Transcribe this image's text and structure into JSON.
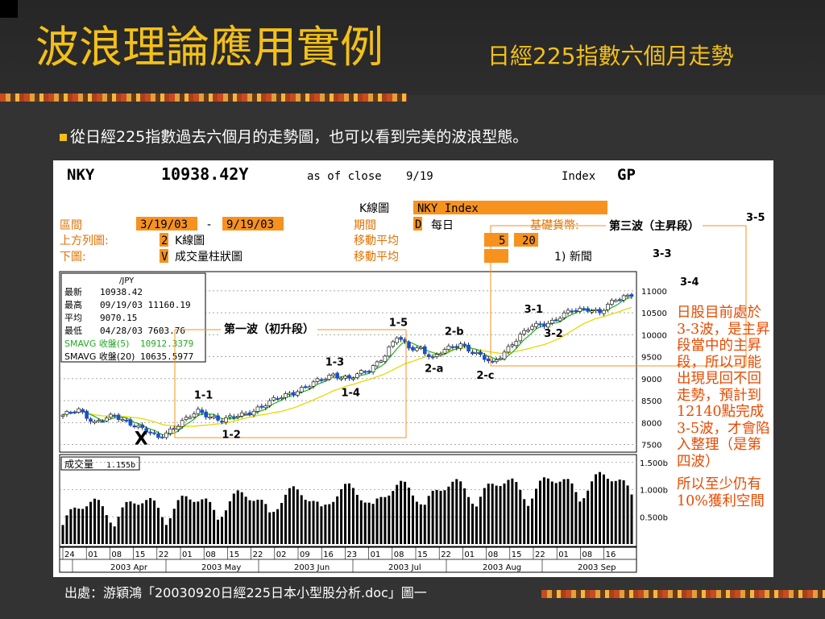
{
  "slide": {
    "title": "波浪理論應用實例",
    "subtitle": "日經225指數六個月走勢",
    "bullet": "從日經225指數過去六個月的走勢圖，也可以看到完美的波浪型態。",
    "source": "出處：游穎鴻「20030920日經225日本小型股分析.doc」圖一",
    "note1": "日股目前處於3-3波，是主昇段當中的主昇段，所以可能出現見回不回走勢，預計到12140點完成3-5波，才會陷入整理（是第四波）",
    "note2": "所以至少仍有10%獲利空間"
  },
  "terminal": {
    "ticker": "NKY",
    "price": "10938.42Y",
    "as_of": "as of close",
    "date": "9/19",
    "index_label": "Index",
    "gp": "GP",
    "chart_label": "K線圖",
    "chart_value": "NKY Index",
    "range_label": "區間",
    "range_from": "3/19/03",
    "range_dash": "-",
    "range_to": "9/19/03",
    "period_label": "期間",
    "period_key": "D",
    "period_value": "每日",
    "currency_label": "基礎貨幣:",
    "upper_label": "上方列圖:",
    "upper_key": "2",
    "upper_value": "K線圖",
    "ma_label1": "移動平均",
    "ma1": "5",
    "ma2": "20",
    "lower_label": "下圖:",
    "lower_key": "V",
    "lower_value": "成交量柱狀圖",
    "ma_label2": "移動平均",
    "news": "1) 新聞"
  },
  "info_box": {
    "unit": "/JPY",
    "rows": [
      {
        "label": "最新",
        "value": "10938.42",
        "color": "#000000"
      },
      {
        "label": "最高",
        "value": "09/19/03 11160.19",
        "color": "#000000"
      },
      {
        "label": "平均",
        "value": "9070.15",
        "color": "#000000"
      },
      {
        "label": "最低",
        "value": "04/28/03 7603.76",
        "color": "#000000"
      },
      {
        "label": "SMAVG 收盤(5)",
        "value": "10912.3379",
        "color": "#22aa22"
      },
      {
        "label": "SMAVG 收盤(20)",
        "value": "10635.5977",
        "color": "#000000"
      }
    ]
  },
  "volume_label": "成交量",
  "volume_value": "1.155b",
  "chart_data": {
    "type": "candlestick",
    "ylim": [
      7400,
      11400
    ],
    "yticks": [
      7500,
      8000,
      8500,
      9000,
      9500,
      10000,
      10500,
      11000
    ],
    "ytick_labels": [
      "7500",
      "8000",
      "8500",
      "9000",
      "9500",
      "10000",
      "10500",
      "11000"
    ],
    "volume_ticks": [
      "1.500b",
      "1.000b",
      "0.500b"
    ],
    "volume_ylim": [
      0,
      1.6
    ],
    "x_day_labels": [
      "24",
      "01",
      "08",
      "15",
      "22",
      "01",
      "08",
      "15",
      "22",
      "02",
      "09",
      "16",
      "23",
      "01",
      "08",
      "15",
      "22",
      "01",
      "08",
      "15",
      "22",
      "01",
      "08",
      "16"
    ],
    "x_month_labels": [
      "2003 Apr",
      "2003 May",
      "2003 Jun",
      "2003 Jul",
      "2003 Aug",
      "2003 Sep"
    ],
    "close_anchors": [
      {
        "i": 0,
        "v": 8150
      },
      {
        "i": 4,
        "v": 8300
      },
      {
        "i": 8,
        "v": 8000
      },
      {
        "i": 13,
        "v": 8150
      },
      {
        "i": 18,
        "v": 7950
      },
      {
        "i": 24,
        "v": 7650
      },
      {
        "i": 28,
        "v": 7900
      },
      {
        "i": 34,
        "v": 8250
      },
      {
        "i": 40,
        "v": 8050
      },
      {
        "i": 46,
        "v": 8200
      },
      {
        "i": 54,
        "v": 8550
      },
      {
        "i": 62,
        "v": 8850
      },
      {
        "i": 68,
        "v": 9100
      },
      {
        "i": 72,
        "v": 9000
      },
      {
        "i": 77,
        "v": 9200
      },
      {
        "i": 81,
        "v": 9550
      },
      {
        "i": 84,
        "v": 9950
      },
      {
        "i": 87,
        "v": 9700
      },
      {
        "i": 90,
        "v": 9700
      },
      {
        "i": 93,
        "v": 9450
      },
      {
        "i": 96,
        "v": 9650
      },
      {
        "i": 100,
        "v": 9800
      },
      {
        "i": 103,
        "v": 9600
      },
      {
        "i": 108,
        "v": 9350
      },
      {
        "i": 113,
        "v": 9800
      },
      {
        "i": 118,
        "v": 10200
      },
      {
        "i": 123,
        "v": 10300
      },
      {
        "i": 128,
        "v": 10550
      },
      {
        "i": 132,
        "v": 10600
      },
      {
        "i": 135,
        "v": 10500
      },
      {
        "i": 139,
        "v": 10800
      },
      {
        "i": 143,
        "v": 10938
      }
    ],
    "wave_labels": [
      {
        "text": "1-1",
        "i": 35,
        "v": 8550
      },
      {
        "text": "1-2",
        "i": 42,
        "v": 7650
      },
      {
        "text": "1-3",
        "i": 68,
        "v": 9300
      },
      {
        "text": "1-4",
        "i": 72,
        "v": 8600
      },
      {
        "text": "1-5",
        "i": 84,
        "v": 10200
      },
      {
        "text": "2-a",
        "i": 93,
        "v": 9150
      },
      {
        "text": "2-b",
        "i": 98,
        "v": 10000
      },
      {
        "text": "2-c",
        "i": 106,
        "v": 9000
      },
      {
        "text": "3-1",
        "i": 118,
        "v": 10500
      },
      {
        "text": "3-2",
        "i": 123,
        "v": 9950
      },
      {
        "text": "X",
        "i": 20,
        "v": 7500
      }
    ],
    "annotations": [
      {
        "text": "第一波（初升段）"
      },
      {
        "text": "第三波（主昇段）"
      },
      {
        "text": "3-3"
      },
      {
        "text": "3-4"
      },
      {
        "text": "3-5"
      }
    ]
  }
}
